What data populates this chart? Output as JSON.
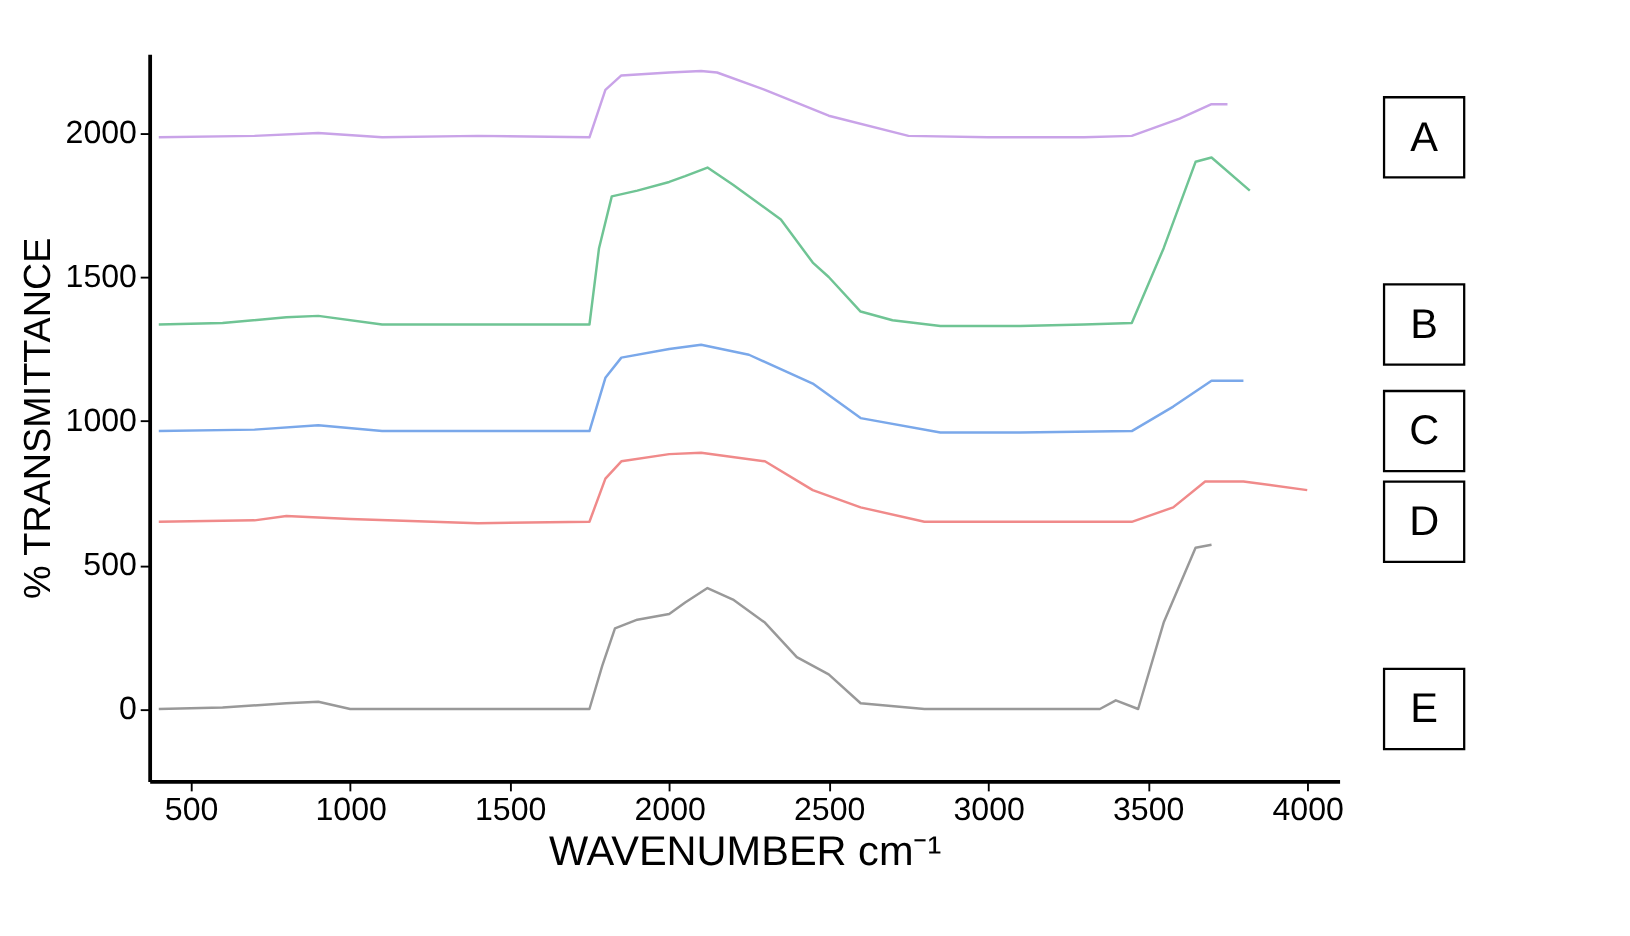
{
  "chart_data": {
    "type": "line",
    "xlabel": "WAVENUMBER cm⁻¹",
    "ylabel": "% TRANSMITTANCE",
    "xlim": [
      370,
      4100
    ],
    "ylim": [
      -250,
      2275
    ],
    "xticks": [
      500,
      1000,
      1500,
      2000,
      2500,
      3000,
      3500,
      4000
    ],
    "yticks": [
      0,
      500,
      1000,
      1500,
      2000
    ],
    "grid": false,
    "marker": "none",
    "line_style": "solid",
    "series": [
      {
        "name": "A",
        "color": "#c9a3e8",
        "x": [
          400,
          700,
          900,
          1100,
          1400,
          1750,
          1800,
          1850,
          2000,
          2100,
          2150,
          2300,
          2500,
          2750,
          3000,
          3300,
          3450,
          3600,
          3700,
          3750
        ],
        "values": [
          1985,
          1990,
          2000,
          1985,
          1990,
          1985,
          2150,
          2200,
          2210,
          2215,
          2210,
          2150,
          2060,
          1990,
          1985,
          1985,
          1990,
          2050,
          2100,
          2100
        ]
      },
      {
        "name": "B",
        "color": "#6fc494",
        "x": [
          400,
          600,
          800,
          900,
          1100,
          1400,
          1750,
          1780,
          1820,
          1900,
          2000,
          2050,
          2120,
          2200,
          2350,
          2450,
          2500,
          2600,
          2700,
          2850,
          3100,
          3300,
          3450,
          3550,
          3650,
          3700,
          3820
        ],
        "values": [
          1335,
          1340,
          1360,
          1365,
          1335,
          1335,
          1335,
          1600,
          1780,
          1800,
          1830,
          1850,
          1880,
          1820,
          1700,
          1550,
          1500,
          1380,
          1350,
          1330,
          1330,
          1335,
          1340,
          1600,
          1900,
          1915,
          1800
        ]
      },
      {
        "name": "C",
        "color": "#7aa8ea",
        "x": [
          400,
          700,
          900,
          1100,
          1400,
          1750,
          1800,
          1850,
          2000,
          2100,
          2250,
          2450,
          2600,
          2850,
          3100,
          3450,
          3580,
          3700,
          3800
        ],
        "values": [
          965,
          970,
          985,
          965,
          965,
          965,
          1150,
          1220,
          1250,
          1265,
          1230,
          1130,
          1010,
          960,
          960,
          965,
          1050,
          1140,
          1140
        ]
      },
      {
        "name": "D",
        "color": "#f08a8a",
        "x": [
          400,
          700,
          800,
          1000,
          1400,
          1750,
          1800,
          1850,
          2000,
          2100,
          2300,
          2450,
          2600,
          2800,
          3100,
          3450,
          3580,
          3680,
          3800,
          4000
        ],
        "values": [
          650,
          655,
          670,
          660,
          645,
          650,
          800,
          860,
          885,
          890,
          860,
          760,
          700,
          650,
          650,
          650,
          700,
          790,
          790,
          760
        ]
      },
      {
        "name": "E",
        "color": "#999999",
        "x": [
          400,
          600,
          800,
          900,
          1000,
          1400,
          1750,
          1790,
          1830,
          1900,
          2000,
          2050,
          2120,
          2200,
          2300,
          2400,
          2500,
          2600,
          2800,
          3100,
          3350,
          3400,
          3470,
          3550,
          3650,
          3700
        ],
        "values": [
          0,
          5,
          20,
          25,
          0,
          0,
          0,
          150,
          280,
          310,
          330,
          370,
          420,
          380,
          300,
          180,
          120,
          20,
          0,
          0,
          0,
          30,
          0,
          300,
          560,
          570
        ]
      }
    ]
  }
}
